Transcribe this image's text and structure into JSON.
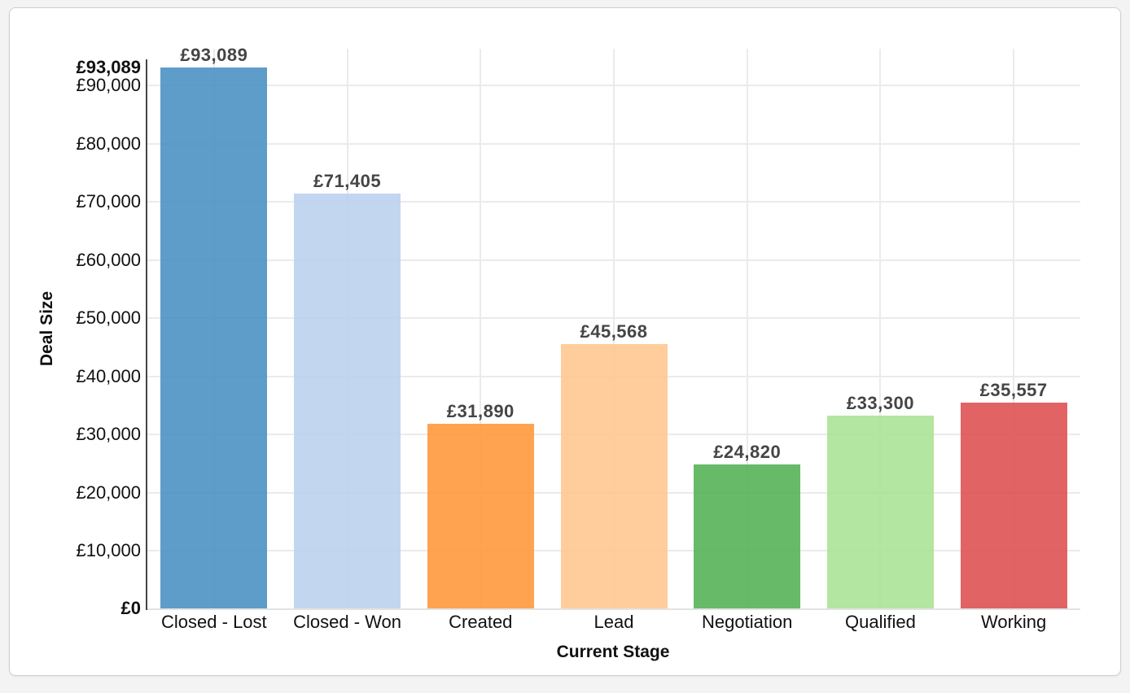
{
  "chart_data": {
    "type": "bar",
    "title": "",
    "xlabel": "Current Stage",
    "ylabel": "Deal Size",
    "categories": [
      "Closed - Lost",
      "Closed - Won",
      "Created",
      "Lead",
      "Negotiation",
      "Qualified",
      "Working"
    ],
    "values": [
      93089,
      71405,
      31890,
      45568,
      24820,
      33300,
      35557
    ],
    "value_labels": [
      "£93,089",
      "£71,405",
      "£31,890",
      "£45,568",
      "£24,820",
      "£33,300",
      "£35,557"
    ],
    "colors": [
      "#4c92c3",
      "#bcd2ee",
      "#ff993e",
      "#ffc891",
      "#56b356",
      "#abe396",
      "#de5253"
    ],
    "ylim": [
      0,
      93089
    ],
    "yticks": [
      0,
      10000,
      20000,
      30000,
      40000,
      50000,
      60000,
      70000,
      80000,
      90000,
      93089
    ],
    "ytick_labels": [
      "£0",
      "£10,000",
      "£20,000",
      "£30,000",
      "£40,000",
      "£50,000",
      "£60,000",
      "£70,000",
      "£80,000",
      "£90,000",
      "£93,089"
    ],
    "grid": true,
    "legend": null
  }
}
